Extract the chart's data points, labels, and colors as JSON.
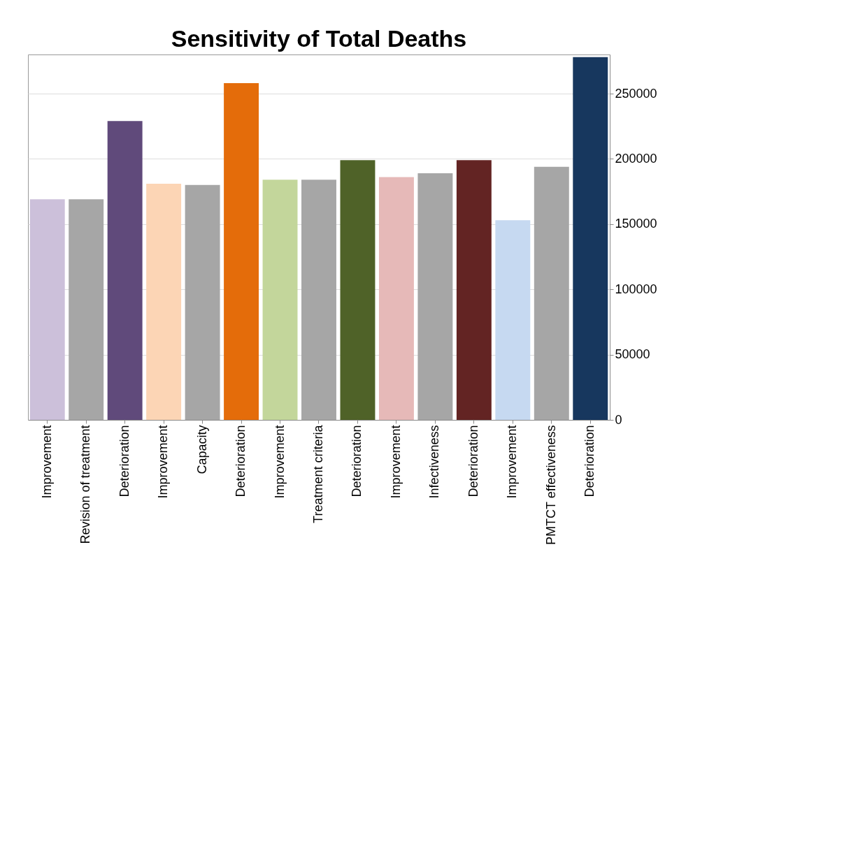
{
  "chart_data": {
    "type": "bar",
    "title": "Sensitivity of Total Deaths",
    "categories": [
      "Improvement",
      "Revision of treatment",
      "Deterioration",
      "Improvement",
      "Capacity",
      "Deterioration",
      "Improvement",
      "Treatment criteria",
      "Deterioration",
      "Improvement",
      "Infectiveness",
      "Deterioration",
      "Improvement",
      "PMTCT effectiveness",
      "Deterioration"
    ],
    "values": [
      169000,
      169000,
      229000,
      181000,
      180000,
      258000,
      184000,
      184000,
      199000,
      186000,
      189000,
      199000,
      153000,
      194000,
      278000
    ],
    "colors": [
      "#ccc0da",
      "#a6a6a6",
      "#604a7b",
      "#fcd5b5",
      "#a6a6a6",
      "#e46c0a",
      "#c3d69b",
      "#a6a6a6",
      "#4f6228",
      "#e6b9b8",
      "#a6a6a6",
      "#632423",
      "#c6d9f1",
      "#a6a6a6",
      "#17375e"
    ],
    "ylim": [
      0,
      280000
    ],
    "yticks": [
      0,
      50000,
      100000,
      150000,
      200000,
      250000
    ],
    "grid": "y"
  }
}
